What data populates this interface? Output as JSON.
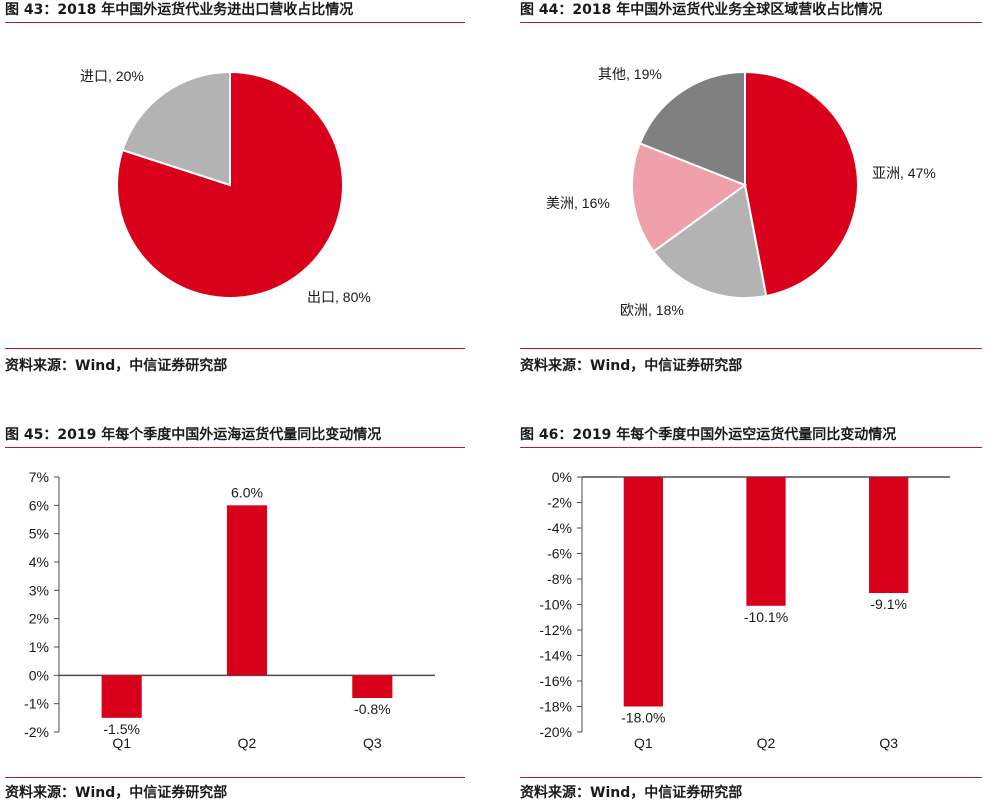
{
  "colors": {
    "accent": "#c8102e",
    "red": "#d9001b",
    "gray_light": "#b3b3b3",
    "gray_dark": "#808080",
    "pink": "#efa0aa"
  },
  "chart_data": [
    {
      "id": "fig43",
      "type": "pie",
      "title": "图 43：2018 年中国外运货代业务进出口营收占比情况",
      "source": "资料来源：Wind，中信证券研究部",
      "slices": [
        {
          "label": "出口",
          "value": 80,
          "display": "出口, 80%",
          "color": "#d9001b"
        },
        {
          "label": "进口",
          "value": 20,
          "display": "进口, 20%",
          "color": "#b3b3b3"
        }
      ]
    },
    {
      "id": "fig44",
      "type": "pie",
      "title": "图 44：2018 年中国外运货代业务全球区域营收占比情况",
      "source": "资料来源：Wind，中信证券研究部",
      "slices": [
        {
          "label": "亚洲",
          "value": 47,
          "display": "亚洲, 47%",
          "color": "#d9001b"
        },
        {
          "label": "欧洲",
          "value": 18,
          "display": "欧洲, 18%",
          "color": "#b3b3b3"
        },
        {
          "label": "美洲",
          "value": 16,
          "display": "美洲, 16%",
          "color": "#efa0aa"
        },
        {
          "label": "其他",
          "value": 19,
          "display": "其他, 19%",
          "color": "#808080"
        }
      ]
    },
    {
      "id": "fig45",
      "type": "bar",
      "title": "图 45：2019 年每个季度中国外运海运货代量同比变动情况",
      "source": "资料来源：Wind，中信证券研究部",
      "categories": [
        "Q1",
        "Q2",
        "Q3"
      ],
      "values": [
        -1.5,
        6.0,
        -0.8
      ],
      "value_labels": [
        "-1.5%",
        "6.0%",
        "-0.8%"
      ],
      "ylim": [
        -2,
        7
      ],
      "yticks": [
        7,
        6,
        5,
        4,
        3,
        2,
        1,
        0,
        -1,
        -2
      ],
      "ytick_labels": [
        "7%",
        "6%",
        "5%",
        "4%",
        "3%",
        "2%",
        "1%",
        "0%",
        "-1%",
        "-2%"
      ],
      "color": "#d9001b"
    },
    {
      "id": "fig46",
      "type": "bar",
      "title": "图 46：2019 年每个季度中国外运空运货代量同比变动情况",
      "source": "资料来源：Wind，中信证券研究部",
      "categories": [
        "Q1",
        "Q2",
        "Q3"
      ],
      "values": [
        -18.0,
        -10.1,
        -9.1
      ],
      "value_labels": [
        "-18.0%",
        "-10.1%",
        "-9.1%"
      ],
      "ylim": [
        -20,
        0
      ],
      "yticks": [
        0,
        -2,
        -4,
        -6,
        -8,
        -10,
        -12,
        -14,
        -16,
        -18,
        -20
      ],
      "ytick_labels": [
        "0%",
        "-2%",
        "-4%",
        "-6%",
        "-8%",
        "-10%",
        "-12%",
        "-14%",
        "-16%",
        "-18%",
        "-20%"
      ],
      "color": "#d9001b"
    }
  ]
}
